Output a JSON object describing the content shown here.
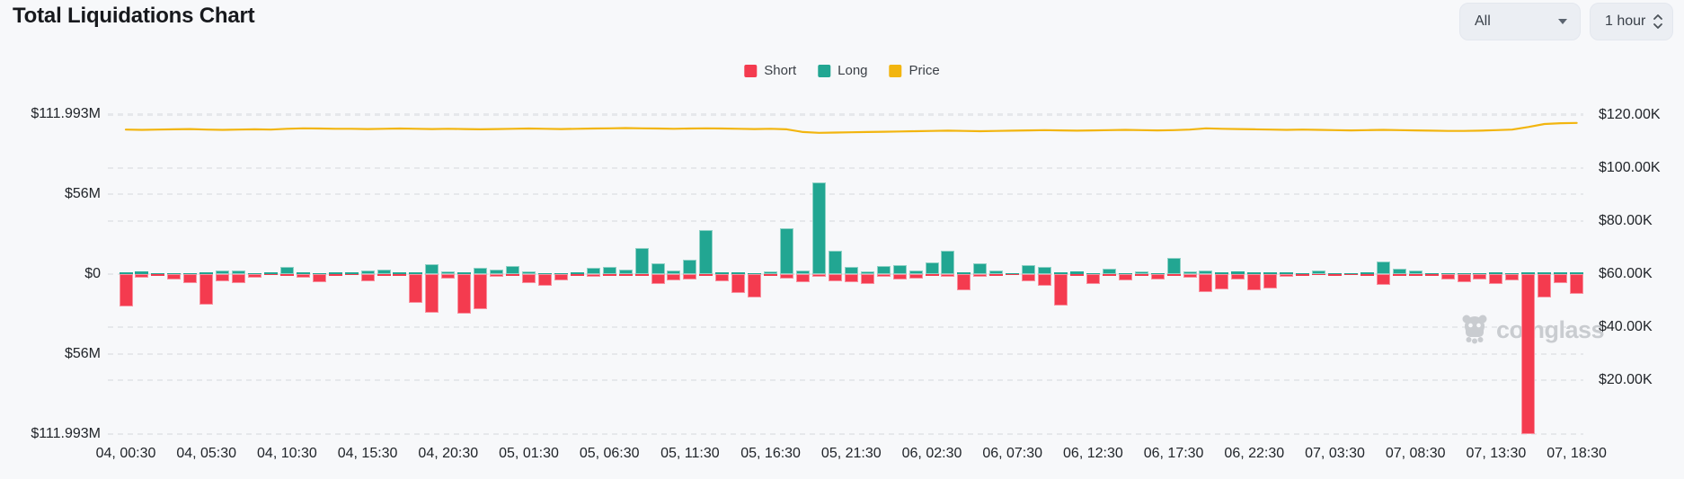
{
  "header": {
    "title": "Total Liquidations Chart"
  },
  "controls": {
    "symbol_dropdown": {
      "value": "All",
      "icon": "caret-down-icon"
    },
    "interval_selector": {
      "value": "1 hour",
      "icon": "spinner-arrows-icon"
    }
  },
  "legend": {
    "items": [
      {
        "label": "Short",
        "color": "#f43b4f"
      },
      {
        "label": "Long",
        "color": "#22a692"
      },
      {
        "label": "Price",
        "color": "#f2b50f"
      }
    ]
  },
  "watermark": {
    "text": "coinglass",
    "icon": "coinglass-ghost-icon"
  },
  "colors": {
    "background": "#f7f8fa",
    "short": "#f43b4f",
    "short_border": "#f9909e",
    "long": "#22a692",
    "long_border": "#8fd2c6",
    "price": "#f2b50f",
    "grid": "#e6e8eb",
    "axis_text": "#202429"
  },
  "chart_data": {
    "type": "combo",
    "title": "Total Liquidations Chart",
    "interval": "1 hour",
    "bars_count": 91,
    "x_tick_labels": [
      "04, 00:30",
      "04, 05:30",
      "04, 10:30",
      "04, 15:30",
      "04, 20:30",
      "05, 01:30",
      "05, 06:30",
      "05, 11:30",
      "05, 16:30",
      "05, 21:30",
      "06, 02:30",
      "06, 07:30",
      "06, 12:30",
      "06, 17:30",
      "06, 22:30",
      "07, 03:30",
      "07, 08:30",
      "07, 13:30",
      "07, 18:30"
    ],
    "bars_per_tick": 5,
    "y_axis_left": {
      "tick_labels": [
        "$111.993M",
        "$56M",
        "$0",
        "$56M",
        "$111.993M"
      ],
      "tick_values_m": [
        111.993,
        56,
        0,
        -56,
        -111.993
      ],
      "max_m": 111.993
    },
    "y_axis_right": {
      "tick_labels": [
        "$120.00K",
        "$100.00K",
        "$80.00K",
        "$60.00K",
        "$40.00K",
        "$20.00K"
      ],
      "tick_values_k": [
        120,
        100,
        80,
        60,
        40,
        20
      ]
    },
    "legend_position": "top-center",
    "grid": "dashed-horizontal",
    "series": [
      {
        "name": "Long",
        "type": "bar",
        "direction": "up",
        "unit": "$M",
        "color": "#22a692",
        "values": [
          1.3,
          1.7,
          0.5,
          0.6,
          0.8,
          1.0,
          2.5,
          2.5,
          0.8,
          1.3,
          5.0,
          1.5,
          0.8,
          1.5,
          1.2,
          2.5,
          3.0,
          1.5,
          1.0,
          7.0,
          2.0,
          1.0,
          4.6,
          3.1,
          5.9,
          2.1,
          0.8,
          0.3,
          1.0,
          4.6,
          5.3,
          3.4,
          18.3,
          7.8,
          2.5,
          10.3,
          31.0,
          1.0,
          1.5,
          0.8,
          2.0,
          32.0,
          2.7,
          64.5,
          16.2,
          5.3,
          2.0,
          5.9,
          6.3,
          2.5,
          8.4,
          16.2,
          1.0,
          7.6,
          2.5,
          0.8,
          6.5,
          5.0,
          1.0,
          1.7,
          0.5,
          3.6,
          0.8,
          1.9,
          0.8,
          11.5,
          2.1,
          2.7,
          1.0,
          1.7,
          1.0,
          1.2,
          1.5,
          0.8,
          2.5,
          0.5,
          0.4,
          1.3,
          8.8,
          3.6,
          2.7,
          0.6,
          0.5,
          0.8,
          0.8,
          1.3,
          0.8,
          1.0,
          1.0,
          1.2,
          1.3
        ]
      },
      {
        "name": "Short",
        "type": "bar",
        "direction": "down",
        "unit": "$M",
        "color": "#f43b4f",
        "values": [
          22.6,
          2.5,
          1.0,
          3.8,
          6.3,
          21.4,
          5.0,
          6.3,
          2.7,
          0.8,
          1.0,
          2.5,
          5.8,
          1.5,
          0.8,
          5.2,
          1.0,
          1.0,
          20.0,
          27.0,
          3.0,
          27.7,
          24.7,
          2.0,
          1.2,
          6.3,
          8.0,
          4.6,
          1.0,
          2.0,
          1.5,
          1.2,
          1.5,
          6.7,
          4.6,
          3.5,
          1.5,
          5.3,
          13.2,
          16.4,
          1.0,
          3.0,
          5.7,
          2.0,
          5.3,
          5.9,
          6.7,
          2.0,
          3.6,
          3.2,
          1.5,
          2.0,
          11.1,
          1.9,
          1.0,
          0.8,
          5.3,
          8.0,
          22.0,
          1.5,
          6.7,
          1.5,
          4.6,
          1.0,
          3.8,
          1.0,
          2.7,
          12.6,
          10.5,
          3.6,
          11.1,
          9.9,
          2.0,
          1.5,
          0.8,
          1.0,
          0.8,
          1.5,
          7.7,
          1.0,
          1.0,
          1.5,
          3.8,
          5.9,
          3.8,
          6.7,
          4.6,
          111.993,
          16.2,
          6.3,
          13.7
        ]
      },
      {
        "name": "Price",
        "type": "line",
        "unit": "$K",
        "color": "#f2b50f",
        "values": [
          114.5,
          114.4,
          114.5,
          114.6,
          114.7,
          114.5,
          114.4,
          114.5,
          114.6,
          114.5,
          114.8,
          115.0,
          114.9,
          114.8,
          114.8,
          114.7,
          114.8,
          114.9,
          114.8,
          114.7,
          114.8,
          114.7,
          114.6,
          114.7,
          114.8,
          114.9,
          114.8,
          114.7,
          114.8,
          114.9,
          115.0,
          115.1,
          115.0,
          114.9,
          114.8,
          114.9,
          115.0,
          114.9,
          114.8,
          114.7,
          114.8,
          114.6,
          113.6,
          113.3,
          113.4,
          113.5,
          113.6,
          113.7,
          113.8,
          113.9,
          114.0,
          114.1,
          114.0,
          113.9,
          114.0,
          114.1,
          114.2,
          114.3,
          114.2,
          114.1,
          114.2,
          114.3,
          114.4,
          114.3,
          114.2,
          114.3,
          114.5,
          115.0,
          114.8,
          114.7,
          114.6,
          114.5,
          114.4,
          114.5,
          114.4,
          114.3,
          114.2,
          114.3,
          114.4,
          114.3,
          114.2,
          114.1,
          114.0,
          114.0,
          114.1,
          114.3,
          114.5,
          115.5,
          116.6,
          116.9,
          117.0
        ]
      }
    ]
  }
}
